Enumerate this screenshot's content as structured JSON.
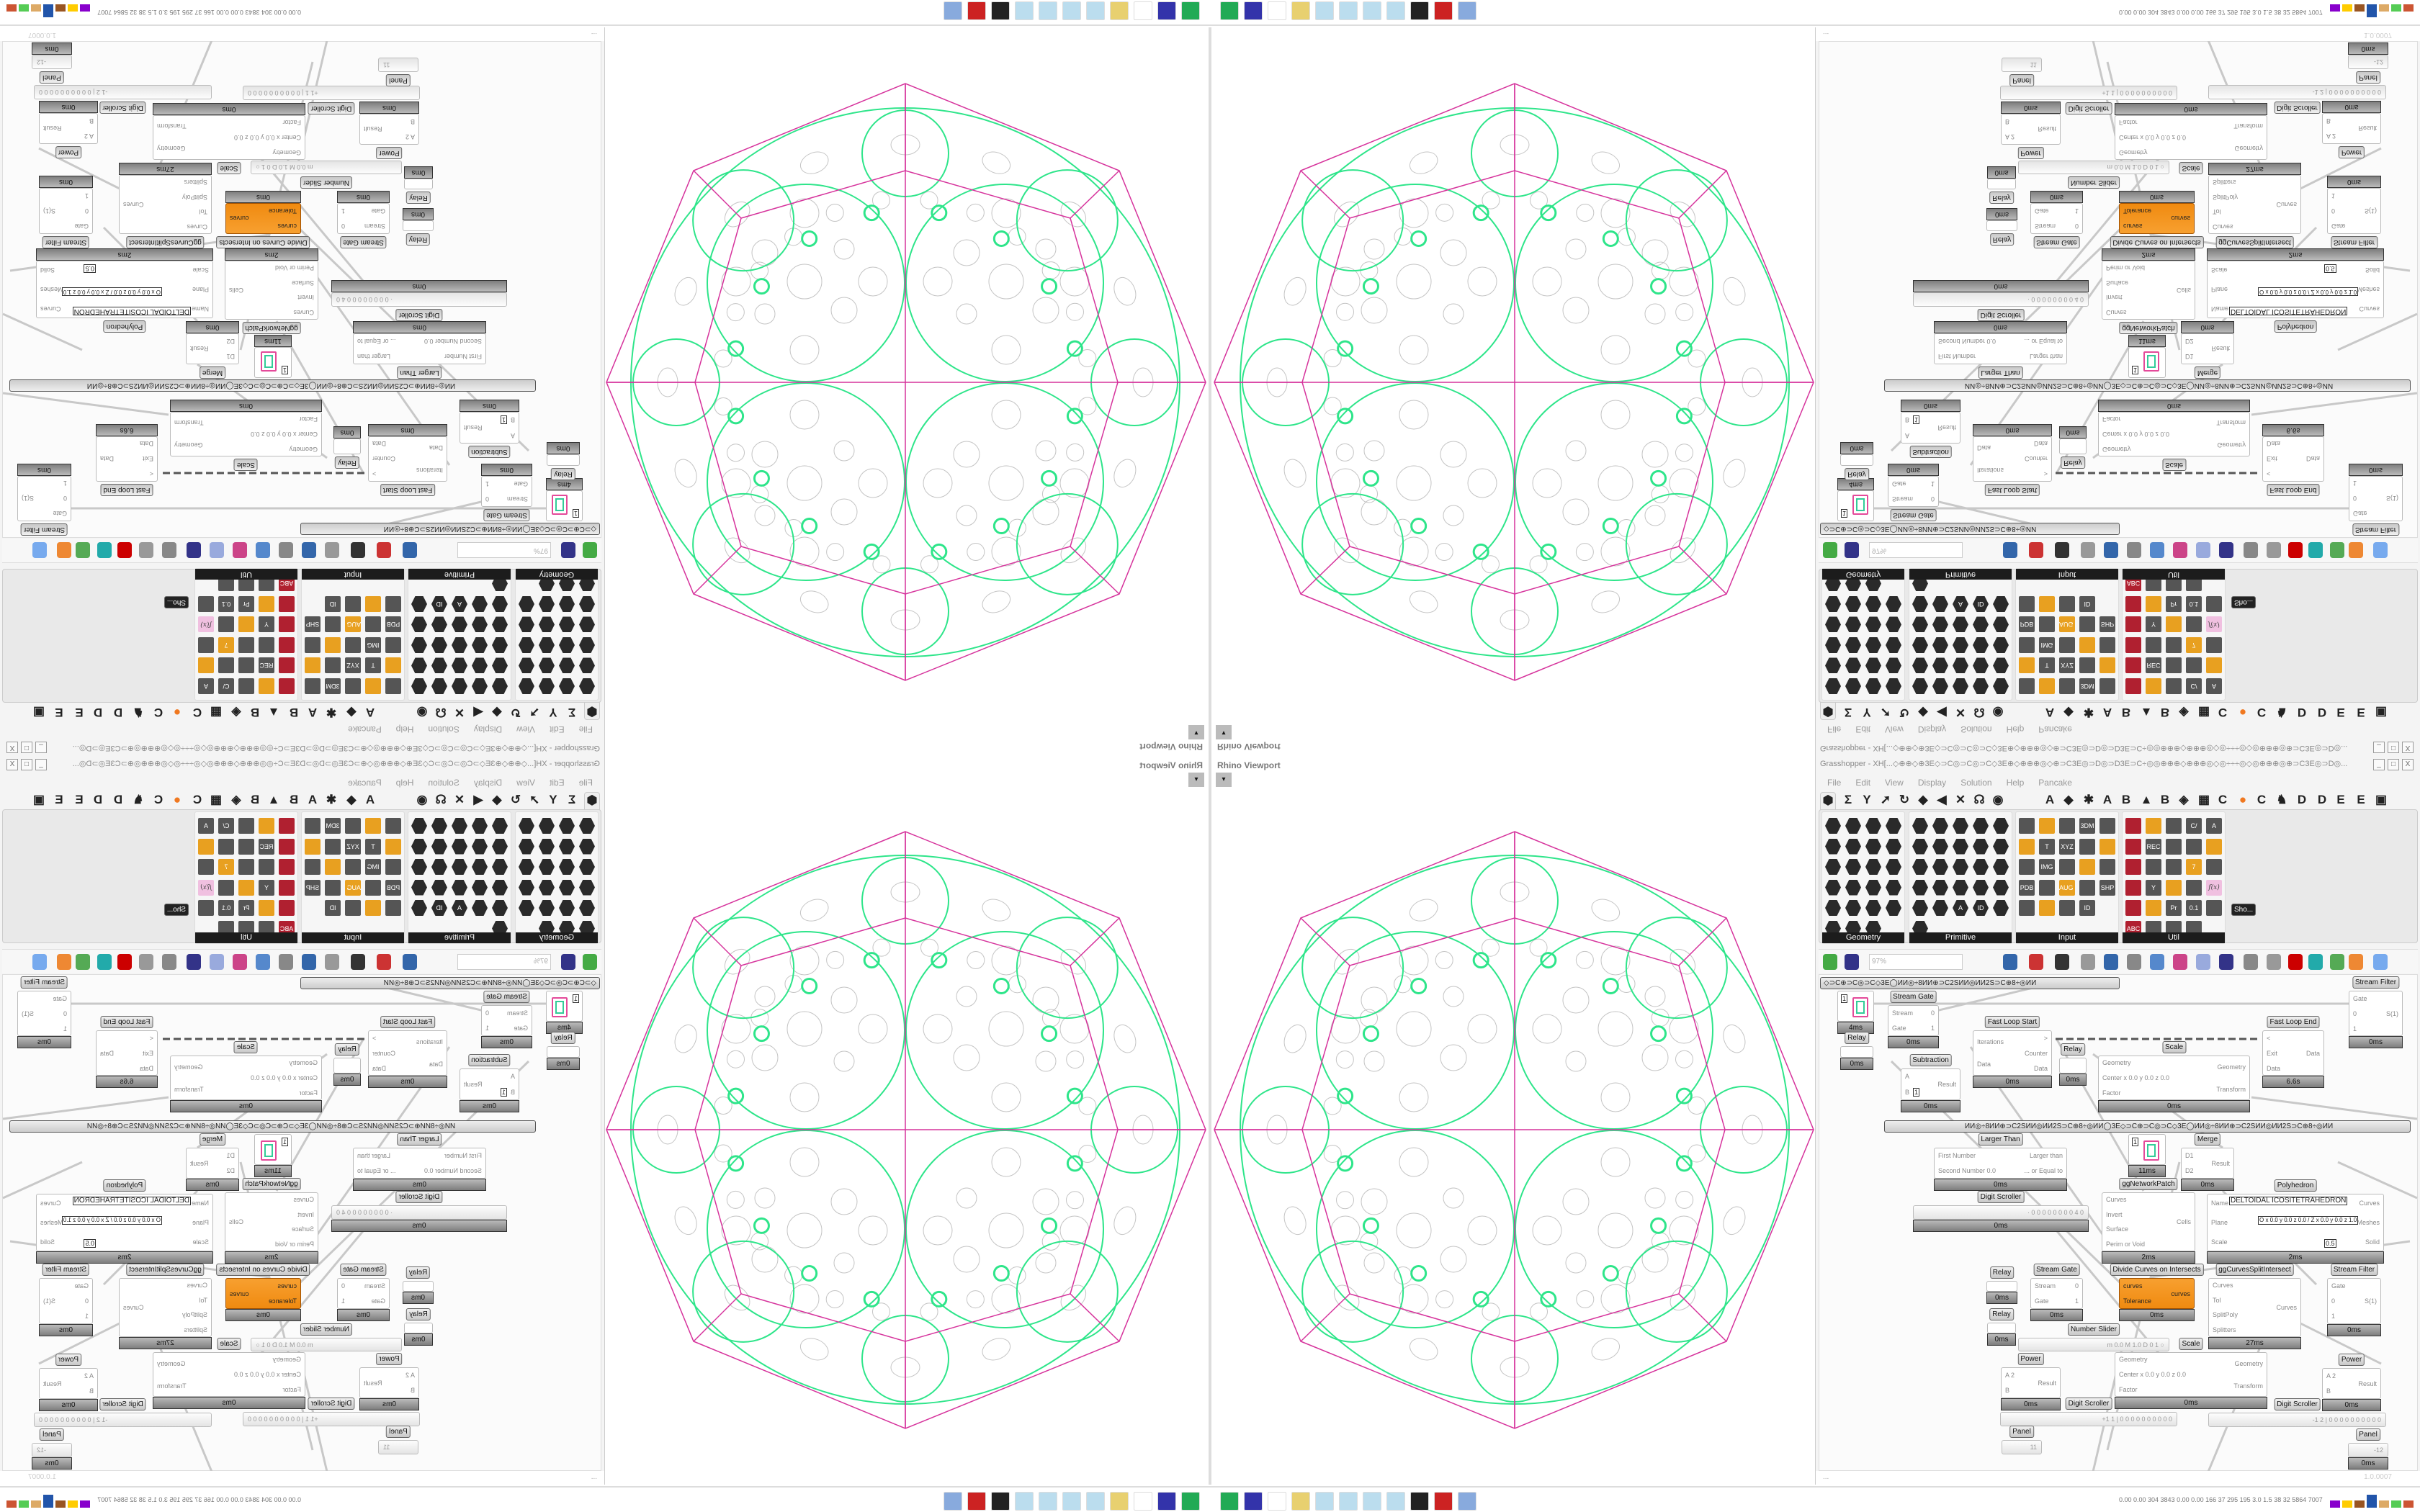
{
  "viewport": {
    "label": "Rhino Viewport",
    "dropdown": "▾"
  },
  "grasshopper": {
    "title": "Grasshopper - XH[...◇⊕⊕◇⊕3E◇⊃C◎⊃C◎⊃C◇3E⊕◇⊕⊕⊕◎◇⊕⊃C3E◎⊃D◎⊃D3E⊃C÷◎◎⊕⊕⊕◇⊕⊕⊕◎◇◎÷÷÷◎◇◎⊕⊕⊕◎⊕⊃C3E◎⊃D◎...",
    "window_buttons": [
      "_",
      "□",
      "X"
    ],
    "menu": [
      "File",
      "Edit",
      "View",
      "Display",
      "Solution",
      "Help",
      "Pancake"
    ],
    "tabs": [
      "⬢",
      "Σ",
      "Y",
      "➚",
      "↻",
      "◆",
      "◀",
      "✕",
      "☊",
      "◉",
      "A",
      "◆",
      "✱",
      "A",
      "B",
      "▲",
      "B",
      "◈",
      "▦",
      "C",
      "●",
      "C",
      "♞",
      "D",
      "D",
      "E",
      "E",
      "▣"
    ],
    "ribbon_groups": [
      {
        "label": "Geometry",
        "icons": [
          "vector",
          "line",
          "plane",
          "spiral",
          "point",
          "box",
          "brep",
          "field",
          "arrow",
          "grid",
          "text-tag",
          "graph-mapper",
          "circle",
          "cube",
          "capsule",
          "mesh",
          "curve",
          "surface",
          "shape",
          "group",
          "coil",
          "net",
          "magnet"
        ]
      },
      {
        "label": "Primitive",
        "icons": [
          "circle-param",
          "star",
          "matrix",
          "arc",
          "mesh-param",
          "polygon",
          "arrows",
          "clock",
          "brep-param",
          "transform",
          "scissors",
          "uc",
          "hexagon",
          "shape",
          "seven",
          "cross",
          "tree",
          "drop",
          "zero-one",
          "hash",
          "complex",
          "document",
          "A",
          "ID",
          "sphere",
          "curve-param"
        ]
      },
      {
        "label": "Input",
        "icons": [
          "import",
          "monitor",
          "gem",
          "3DM",
          "slider",
          "gradient-pin",
          "T",
          "XYZ",
          "toggle",
          "gradient",
          "color-wheel",
          "IMG",
          "button",
          "checker",
          "graph",
          "PDB",
          "clip",
          "AUG 20",
          "gyro",
          "SHP",
          "list",
          "clock",
          "colors",
          "ID"
        ]
      },
      {
        "label": "Util",
        "icons": [
          "cherry",
          "arc-u",
          "arrow-right",
          "C/",
          "A",
          "play",
          "REC",
          "timer",
          "spiral",
          "disc",
          "axes",
          "pencil",
          "stopwatch",
          "7",
          "flask",
          "tree",
          "Y",
          "egg",
          "key",
          "f(x)",
          "blob",
          "loop",
          "Pr",
          "0.1",
          "palette",
          "ABC",
          "arrow",
          "gauge",
          "x"
        ]
      }
    ],
    "show_button": "Sho...",
    "zoom_value": "97%",
    "groups": [
      "◇⊃C⊕⊃C◎⊃C◇3E◯ИИ◎÷8ИИ⊕⊃C2SИИ◎ИИ2S⊃C⊕8÷◎ИИ",
      "ИИ◎÷8ИИ⊕⊃C2SИИ◎ИИ2S⊃C⊕8÷◎ИИ◯3E◇⊃C⊕⊃C◎⊃C◇3E◯ИИ◎÷8ИИ⊕⊃C2SИИ◎ИИ2S⊃C⊕8÷◎ИИ"
    ],
    "components": [
      {
        "label": "Stream Gate",
        "inputs": [
          "Stream",
          "Gate"
        ],
        "outputs": [
          "0",
          "1"
        ],
        "time": "0ms"
      },
      {
        "label": "",
        "inputs": [],
        "outputs": [],
        "time": "4ms",
        "param": "1"
      },
      {
        "label": "Relay",
        "inputs": [],
        "outputs": [],
        "time": "0ms"
      },
      {
        "label": "Subtraction",
        "inputs": [
          "A",
          "B"
        ],
        "outputs": [
          "Result"
        ],
        "time": "0ms",
        "param": "1"
      },
      {
        "label": "Fast Loop Start",
        "inputs": [
          "Iterations",
          "Data"
        ],
        "outputs": [
          ">",
          "Counter",
          "Data"
        ],
        "time": "0ms"
      },
      {
        "label": "Relay",
        "inputs": [],
        "outputs": [],
        "time": "0ms"
      },
      {
        "label": "Scale",
        "inputs": [
          "Geometry",
          "Center x 0.0 y 0.0 z 0.0",
          "Factor"
        ],
        "outputs": [
          "Geometry",
          "Transform"
        ],
        "time": "0ms"
      },
      {
        "label": "Fast Loop End",
        "inputs": [
          "<",
          "Exit",
          "Data"
        ],
        "outputs": [
          "Data"
        ],
        "time": "6.6s"
      },
      {
        "label": "Stream Filter",
        "inputs": [
          "Gate",
          "0",
          "1"
        ],
        "outputs": [
          "S(1)"
        ],
        "time": "0ms"
      },
      {
        "label": "Larger Than",
        "inputs": [
          "First Number",
          "Second Number 0.0"
        ],
        "outputs": [
          "Larger than",
          "... or Equal to"
        ],
        "time": "0ms"
      },
      {
        "label": "",
        "inputs": [],
        "outputs": [],
        "time": "11ms",
        "param": "1"
      },
      {
        "label": "Merge",
        "inputs": [
          "D1",
          "D2"
        ],
        "outputs": [
          "Result"
        ],
        "time": "0ms"
      },
      {
        "label": "Digit Scroller",
        "inputs": [],
        "outputs": [],
        "time": "0ms",
        "param": "· 0 0 0 0 0 0 0 0 4 0"
      },
      {
        "label": "ggNetworkPatch",
        "inputs": [
          "Curves",
          "Invert",
          "Surface",
          "Perim or Void"
        ],
        "outputs": [
          "Cells"
        ],
        "time": "2ms"
      },
      {
        "label": "Polyhedron",
        "inputs": [
          "Name",
          "Plane",
          "Scale"
        ],
        "outputs": [
          "Curves",
          "Meshes",
          "Solid"
        ],
        "time": "2ms",
        "param": "DELTOIDAL ICOSITETRAHEDRON",
        "plane": "O x 0.0 y 0.0 z 0.0 / Z x 0.0 y 0.0 z 1.0",
        "scale": "0.5"
      },
      {
        "label": "Relay",
        "inputs": [],
        "outputs": [],
        "time": "0ms"
      },
      {
        "label": "Relay",
        "inputs": [],
        "outputs": [],
        "time": "0ms"
      },
      {
        "label": "Stream Gate",
        "inputs": [
          "Stream",
          "Gate"
        ],
        "outputs": [
          "0",
          "1"
        ],
        "time": "0ms"
      },
      {
        "label": "Divide Curves on Intersects",
        "inputs": [
          "curves",
          "Tolerance"
        ],
        "outputs": [
          "curves"
        ],
        "time": "0ms"
      },
      {
        "label": "ggCurvesSplitIntersect",
        "inputs": [
          "Curves",
          "Tol",
          "SplitPoly",
          "Splitters"
        ],
        "outputs": [
          "Curves"
        ],
        "time": "27ms"
      },
      {
        "label": "Stream Filter",
        "inputs": [
          "Gate",
          "0",
          "1"
        ],
        "outputs": [
          "S(1)"
        ],
        "time": "0ms"
      },
      {
        "label": "Number Slider",
        "inputs": [],
        "outputs": [],
        "time": "",
        "param": "m 0.0  M 1.0  D 0          1 ○"
      },
      {
        "label": "Scale",
        "inputs": [
          "Geometry",
          "Center x 0.0 y 0.0 z 0.0",
          "Factor"
        ],
        "outputs": [
          "Geometry",
          "Transform"
        ],
        "time": "0ms"
      },
      {
        "label": "Power",
        "inputs": [
          "A 2",
          "B"
        ],
        "outputs": [
          "Result"
        ],
        "time": "0ms"
      },
      {
        "label": "Power",
        "inputs": [
          "A 2",
          "B"
        ],
        "outputs": [
          "Result"
        ],
        "time": "0ms"
      },
      {
        "label": "Digit Scroller",
        "inputs": [],
        "outputs": [],
        "time": "",
        "param": "+1 1 | 0 0 0 0 0 0 0 0 0 0"
      },
      {
        "label": "Digit Scroller",
        "inputs": [],
        "outputs": [],
        "time": "",
        "param": "-1 2 | 0 0 0 0 0 0 0 0 0 0"
      },
      {
        "label": "Panel",
        "inputs": [],
        "outputs": [],
        "time": "",
        "param": "11"
      },
      {
        "label": "Panel",
        "inputs": [],
        "outputs": [],
        "time": "0ms",
        "param": "-12"
      }
    ],
    "status_left": "...",
    "version": "1.0.0007"
  },
  "taskbar": {
    "icons": [
      "monitor-icon",
      "floppy-64-icon",
      "blank-icon",
      "folder-icon",
      "notepad-icon",
      "notepad-icon",
      "notepad-icon",
      "notepad-icon",
      "cow-icon",
      "red-app-icon",
      "calculator-icon"
    ],
    "stats": "0.00 0.00 304 3843 0.00 0.00 166 37 295 195 3.0 1.5 38 32 5864 7007"
  },
  "colors": {
    "wire": "#c8c8c8",
    "green": "#2ee58a",
    "magenta": "#d6339c",
    "orange": "#f08a10",
    "pattern": "#c4c4c4"
  }
}
